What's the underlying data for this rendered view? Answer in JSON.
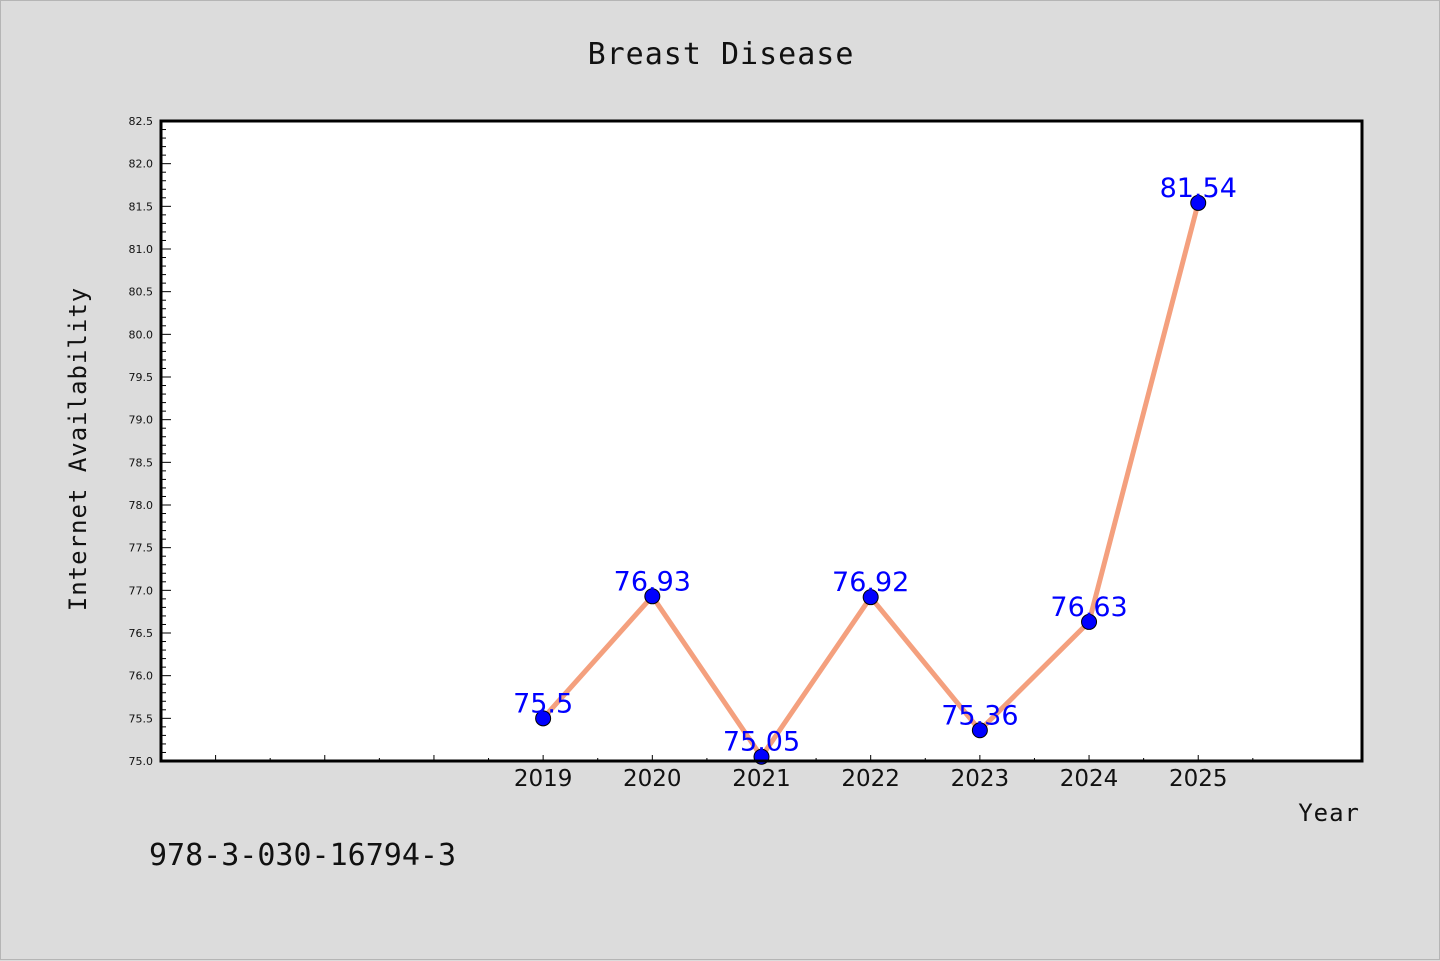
{
  "chart_data": {
    "type": "line",
    "title": "Breast Disease",
    "xlabel": "Year",
    "ylabel": "Internet Availability",
    "x": [
      2019,
      2020,
      2021,
      2022,
      2023,
      2024,
      2025
    ],
    "xlim": [
      2015.5,
      2026.5
    ],
    "ylim": [
      75.0,
      82.5
    ],
    "ytick_step": 0.5,
    "y_minor_step": 0.1,
    "series": [
      {
        "values": [
          75.5,
          76.93,
          75.05,
          76.92,
          75.36,
          76.63,
          81.54
        ],
        "labels": [
          "75.5",
          "76.93",
          "75.05",
          "76.92",
          "75.36",
          "76.63",
          "81.54"
        ],
        "line_color": "#f4a07e",
        "marker_color": "#0000ff"
      }
    ],
    "grid": false,
    "legend": "none"
  },
  "footer": {
    "isbn": "978-3-030-16794-3"
  },
  "colors": {
    "background": "#dcdcdc",
    "plot_area": "#ffffff",
    "line": "#f4a07e",
    "marker": "#0000ff",
    "data_label": "#0000ff"
  }
}
